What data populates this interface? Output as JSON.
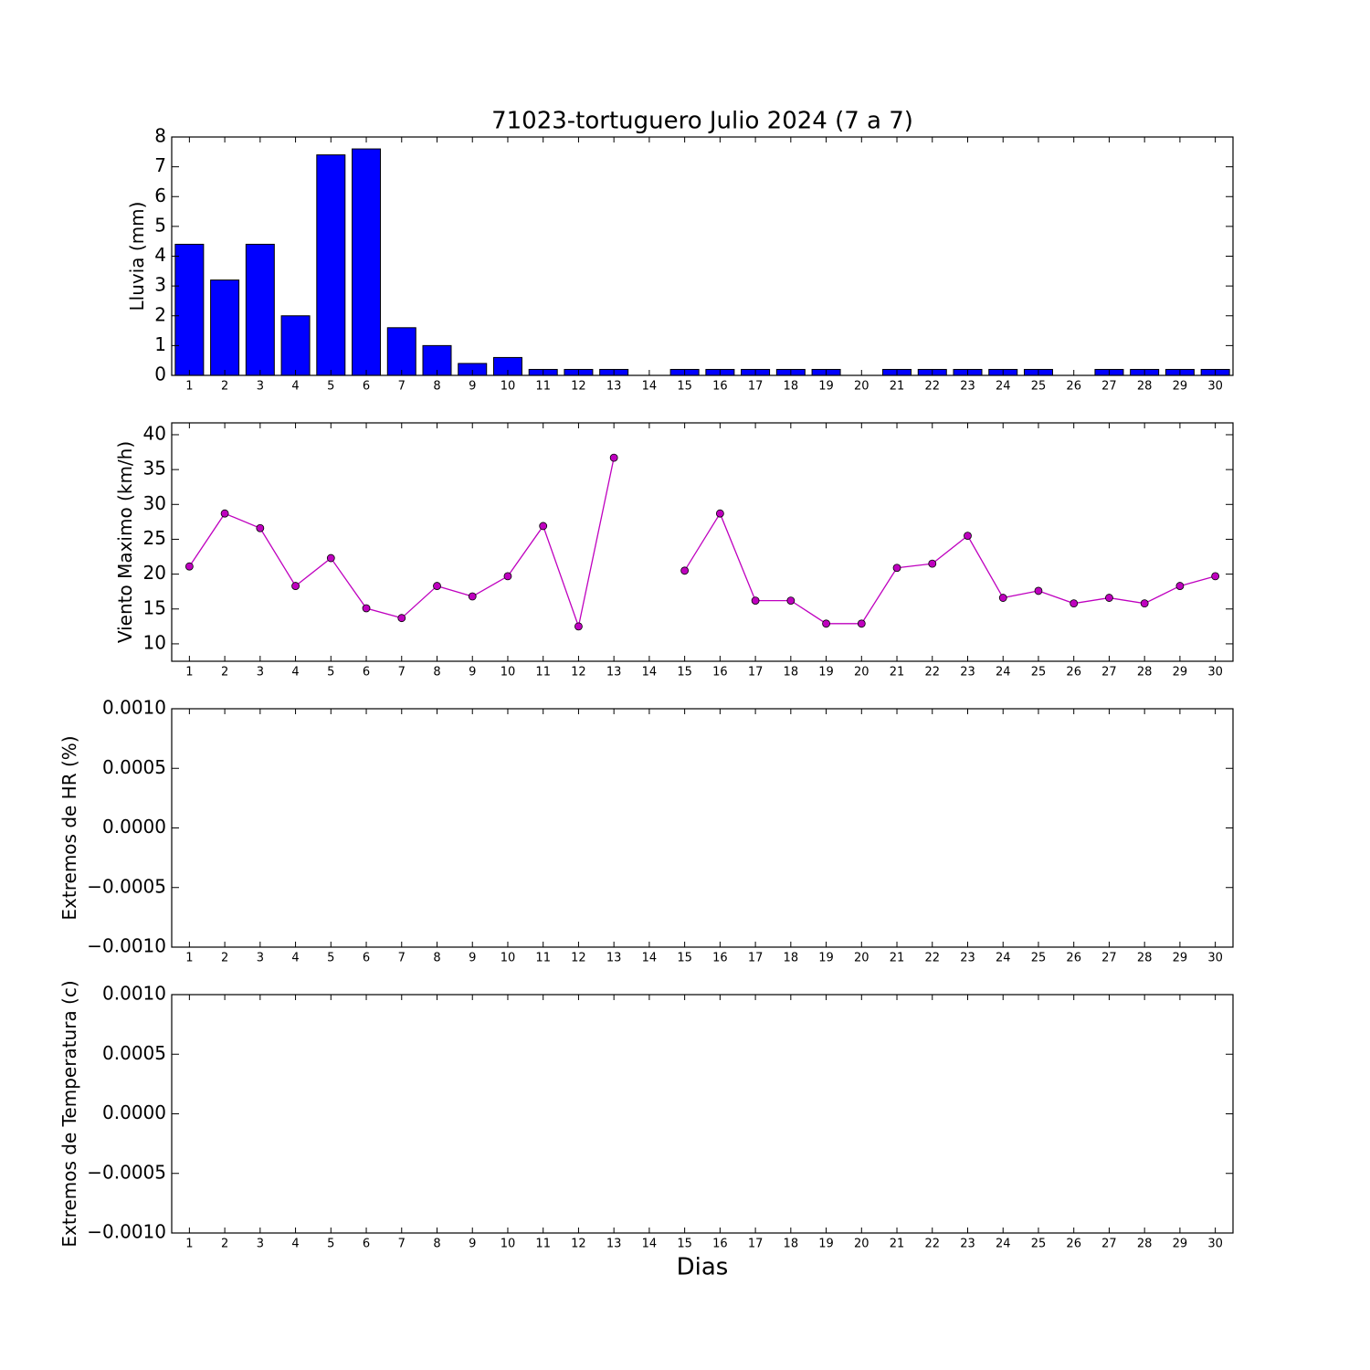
{
  "chart_data": [
    {
      "type": "bar",
      "title": "71023-tortuguero Julio 2024  (7 a 7)",
      "ylabel": "Lluvia (mm)",
      "x": [
        1,
        2,
        3,
        4,
        5,
        6,
        7,
        8,
        9,
        10,
        11,
        12,
        13,
        14,
        15,
        16,
        17,
        18,
        19,
        20,
        21,
        22,
        23,
        24,
        25,
        26,
        27,
        28,
        29,
        30
      ],
      "values": [
        4.4,
        3.2,
        4.4,
        2.0,
        7.4,
        7.6,
        1.6,
        1.0,
        0.4,
        0.6,
        0.2,
        0.2,
        0.2,
        null,
        0.2,
        0.2,
        0.2,
        0.2,
        0.2,
        0,
        0.2,
        0.2,
        0.2,
        0.2,
        0.2,
        0,
        0.2,
        0.2,
        0.2,
        0.2
      ],
      "color": "#0000ff",
      "xlim": [
        0.5,
        30.5
      ],
      "xticks": [
        1,
        2,
        3,
        4,
        5,
        6,
        7,
        8,
        9,
        10,
        11,
        12,
        13,
        14,
        15,
        16,
        17,
        18,
        19,
        20,
        21,
        22,
        23,
        24,
        25,
        26,
        27,
        28,
        29,
        30
      ],
      "ylim": [
        0,
        8
      ],
      "yticks": [
        0,
        1,
        2,
        3,
        4,
        5,
        6,
        7,
        8
      ]
    },
    {
      "type": "line",
      "ylabel": "Viento Maximo (km/h)",
      "x": [
        1,
        2,
        3,
        4,
        5,
        6,
        7,
        8,
        9,
        10,
        11,
        12,
        13,
        14,
        15,
        16,
        17,
        18,
        19,
        20,
        21,
        22,
        23,
        24,
        25,
        26,
        27,
        28,
        29,
        30
      ],
      "series": [
        {
          "color": "#bf00bf",
          "values": [
            21.1,
            28.7,
            26.6,
            18.3,
            22.3,
            15.1,
            13.7,
            18.3,
            16.8,
            19.7,
            26.9,
            12.5,
            36.7,
            null,
            20.5,
            28.7,
            16.2,
            16.2,
            12.9,
            12.9,
            20.9,
            21.5,
            25.5,
            16.6,
            17.6,
            15.8,
            16.6,
            15.8,
            18.3,
            19.7
          ]
        }
      ],
      "xlim": [
        0.5,
        30.5
      ],
      "xticks": [
        1,
        2,
        3,
        4,
        5,
        6,
        7,
        8,
        9,
        10,
        11,
        12,
        13,
        14,
        15,
        16,
        17,
        18,
        19,
        20,
        21,
        22,
        23,
        24,
        25,
        26,
        27,
        28,
        29,
        30
      ],
      "ylim": [
        7.5,
        41.7
      ],
      "yticks": [
        10,
        15,
        20,
        25,
        30,
        35,
        40
      ]
    },
    {
      "type": "line",
      "ylabel": "Extremos de HR (%)",
      "xlim": [
        0.5,
        30.5
      ],
      "xticks": [
        1,
        2,
        3,
        4,
        5,
        6,
        7,
        8,
        9,
        10,
        11,
        12,
        13,
        14,
        15,
        16,
        17,
        18,
        19,
        20,
        21,
        22,
        23,
        24,
        25,
        26,
        27,
        28,
        29,
        30
      ],
      "ylim": [
        -0.001,
        0.001
      ],
      "yticks": [
        {
          "value": -0.001,
          "label": "−0.0010"
        },
        {
          "value": -0.0005,
          "label": "−0.0005"
        },
        {
          "value": 0,
          "label": "0.0000"
        },
        {
          "value": 0.0005,
          "label": "0.0005"
        },
        {
          "value": 0.001,
          "label": "0.0010"
        }
      ]
    },
    {
      "type": "line",
      "ylabel": "Extremos de Temperatura (c)",
      "xlabel": "Dias",
      "xlim": [
        0.5,
        30.5
      ],
      "xticks": [
        1,
        2,
        3,
        4,
        5,
        6,
        7,
        8,
        9,
        10,
        11,
        12,
        13,
        14,
        15,
        16,
        17,
        18,
        19,
        20,
        21,
        22,
        23,
        24,
        25,
        26,
        27,
        28,
        29,
        30
      ],
      "ylim": [
        -0.001,
        0.001
      ],
      "yticks": [
        {
          "value": -0.001,
          "label": "−0.0010"
        },
        {
          "value": -0.0005,
          "label": "−0.0005"
        },
        {
          "value": 0,
          "label": "0.0000"
        },
        {
          "value": 0.0005,
          "label": "0.0005"
        },
        {
          "value": 0.001,
          "label": "0.0010"
        }
      ]
    }
  ]
}
